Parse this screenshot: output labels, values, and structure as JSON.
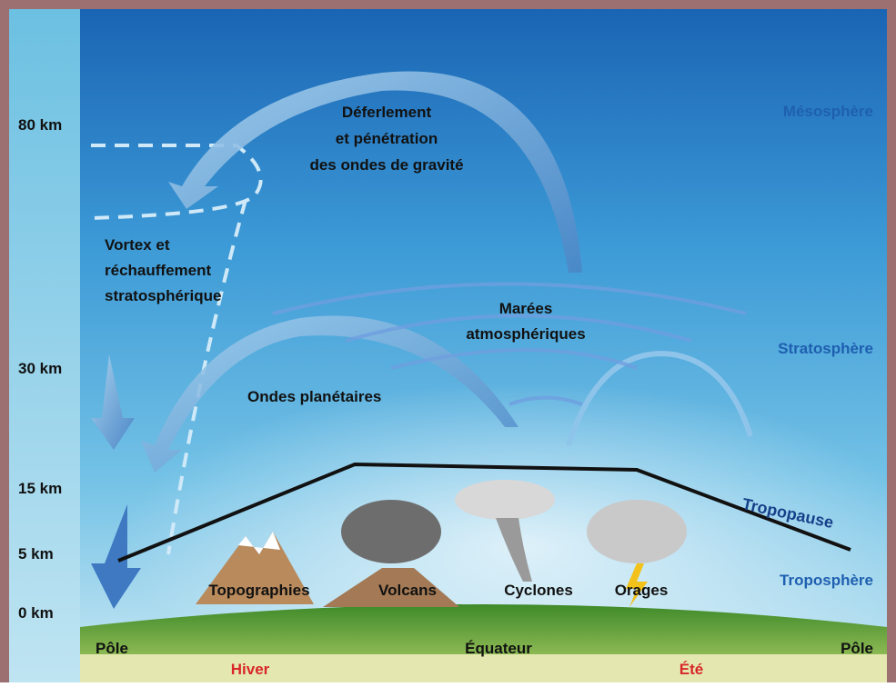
{
  "altitudes": [
    "80 km",
    "30 km",
    "15 km",
    "5 km",
    "0 km"
  ],
  "layers": [
    "Mésosphère",
    "Stratosphère",
    "Tropopause",
    "Troposphère"
  ],
  "phenomena": {
    "gravity_waves": [
      "Déferlement",
      "et pénétration",
      "des ondes de gravité"
    ],
    "vortex": [
      "Vortex et",
      "réchauffement",
      "stratosphérique"
    ],
    "tides": [
      "Marées",
      "atmosphériques"
    ],
    "planetary": [
      "Ondes planétaires"
    ]
  },
  "sources": [
    "Topographies",
    "Volcans",
    "Cyclones",
    "Orages"
  ],
  "ground": {
    "left": "Pôle",
    "center": "Équateur",
    "right": "Pôle",
    "winter": "Hiver",
    "summer": "Été"
  }
}
